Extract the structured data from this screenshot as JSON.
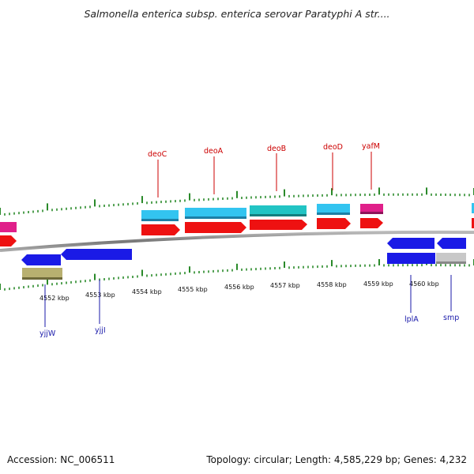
{
  "title": "Salmonella enterica subsp. enterica serovar Paratyphi A str....",
  "footer": {
    "accession": "Accession: NC_006511",
    "topology": "Topology: circular; Length: 4,585,229 bp; Genes: 4,232"
  },
  "axis": {
    "unit": "kbp",
    "ticks": [
      {
        "label": "4552 kbp",
        "value": 4552
      },
      {
        "label": "4553 kbp",
        "value": 4553
      },
      {
        "label": "4554 kbp",
        "value": 4554
      },
      {
        "label": "4555 kbp",
        "value": 4555
      },
      {
        "label": "4556 kbp",
        "value": 4556
      },
      {
        "label": "4557 kbp",
        "value": 4557
      },
      {
        "label": "4558 kbp",
        "value": 4558
      },
      {
        "label": "4559 kbp",
        "value": 4559
      },
      {
        "label": "4560 kbp",
        "value": 4560
      }
    ]
  },
  "genes_forward": [
    {
      "name": "deoC"
    },
    {
      "name": "deoA"
    },
    {
      "name": "deoB"
    },
    {
      "name": "deoD"
    },
    {
      "name": "yafM"
    }
  ],
  "genes_reverse": [
    {
      "name": "yjjW"
    },
    {
      "name": "yjjI"
    },
    {
      "name": "lplA"
    },
    {
      "name": "smp"
    }
  ],
  "colors": {
    "backbone": "#888888",
    "tick": "#2a8a2a",
    "cds_red": "#ee1111",
    "cds_blue": "#1a1ae6",
    "gene_cyan": "#33c4f0",
    "gene_teal": "#22c4c4",
    "gene_pink": "#e0208a",
    "gene_olive": "#b8b070",
    "gene_grey": "#c8c8c8"
  }
}
